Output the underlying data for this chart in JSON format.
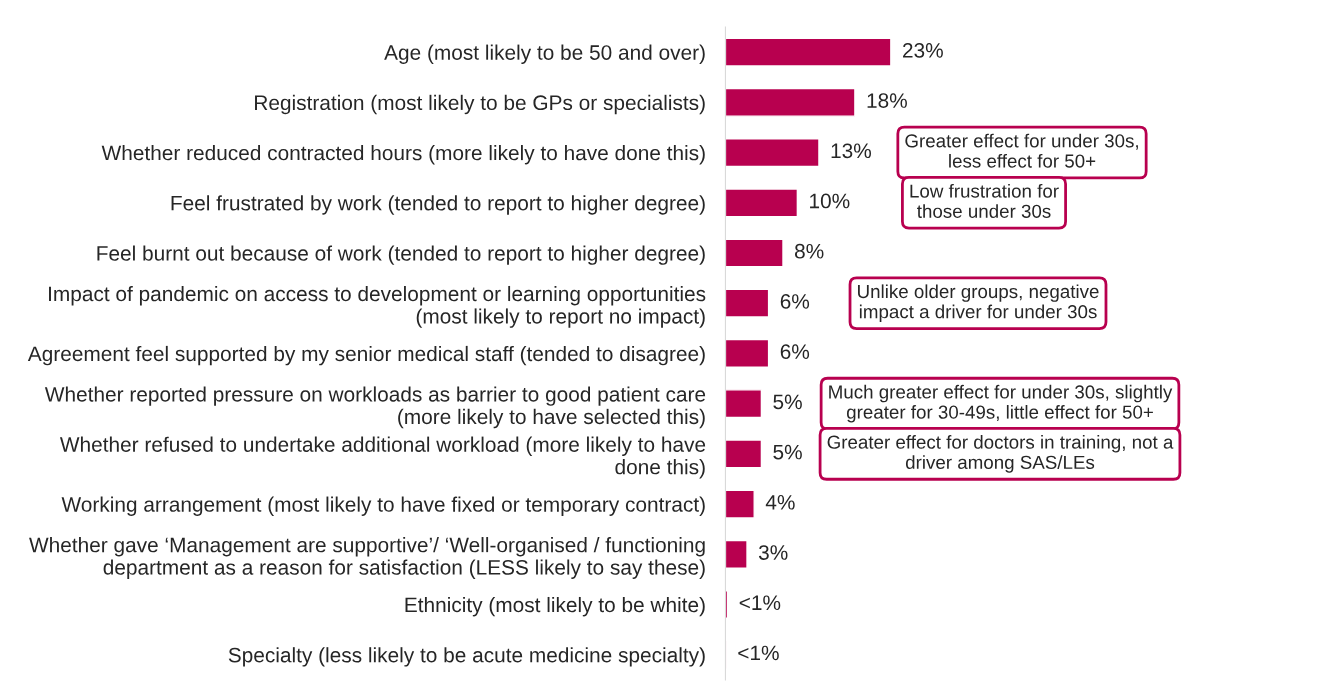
{
  "chart_data": {
    "type": "bar",
    "orientation": "horizontal",
    "categories": [
      "Age (most likely to be 50 and over)",
      "Registration (most likely to be GPs or specialists)",
      "Whether reduced contracted hours (more likely to have done this)",
      "Feel frustrated by work (tended to report to higher degree)",
      "Feel burnt out because of work (tended to report to higher degree)",
      "Impact of pandemic on access to development or learning opportunities\n(most likely to report no impact)",
      "Agreement feel supported by my senior medical staff (tended to disagree)",
      "Whether reported pressure on workloads as barrier to good patient care\n(more likely to have selected this)",
      "Whether refused to undertake additional workload (more likely to have\ndone this)",
      "Working arrangement (most likely to have fixed or temporary contract)",
      "Whether gave ‘Management are supportive’/ ‘Well-organised / functioning\ndepartment as a reason for satisfaction (LESS likely to say these)",
      "Ethnicity (most likely to be white)",
      "Specialty (less likely to be acute medicine specialty)"
    ],
    "values": [
      23,
      18,
      13,
      10,
      8,
      6,
      6,
      5,
      5,
      4,
      3,
      0.3,
      0.1
    ],
    "value_labels": [
      "23%",
      "18%",
      "13%",
      "10%",
      "8%",
      "6%",
      "6%",
      "5%",
      "5%",
      "4%",
      "3%",
      "<1%",
      "<1%"
    ],
    "color": "#b8004f",
    "tick_labels": "y",
    "grid": false,
    "legend": false,
    "annotations": [
      "Greater effect for under 30s,\nless effect for 50+",
      "Low frustration for\nthose under 30s",
      "Unlike older groups, negative\nimpact a driver for under 30s",
      "Much greater effect for under 30s, slightly\ngreater for 30-49s, little effect for 50+",
      "Greater effect for doctors in training, not a\ndriver among SAS/LEs"
    ]
  }
}
